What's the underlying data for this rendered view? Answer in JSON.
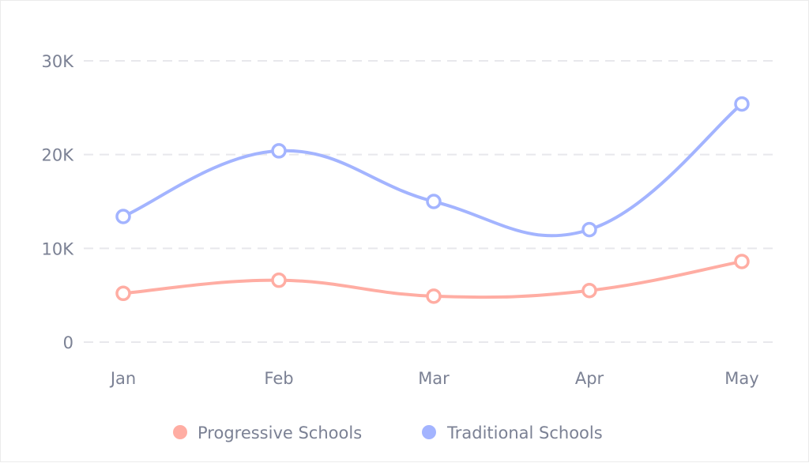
{
  "chart_data": {
    "type": "line",
    "title": "",
    "xlabel": "",
    "ylabel": "",
    "categories": [
      "Jan",
      "Feb",
      "Mar",
      "Apr",
      "May"
    ],
    "series": [
      {
        "name": "Progressive Schools",
        "color": "#ffada3",
        "values": [
          5200,
          6600,
          4900,
          5500,
          8600
        ]
      },
      {
        "name": "Traditional Schools",
        "color": "#a3b4ff",
        "values": [
          13400,
          20400,
          15000,
          12000,
          25400
        ]
      }
    ],
    "yticks": [
      0,
      10000,
      20000,
      30000
    ],
    "ytick_labels": [
      "0",
      "10K",
      "20K",
      "30K"
    ],
    "ylim": [
      0,
      30000
    ],
    "grid": true,
    "smooth": true,
    "markers": "hollow-circle",
    "legend_position": "bottom"
  },
  "legend": {
    "items": [
      {
        "label": "Progressive Schools",
        "color": "#ffada3"
      },
      {
        "label": "Traditional Schools",
        "color": "#a3b4ff"
      }
    ]
  },
  "colors": {
    "grid": "#e8e8ec",
    "tick_text": "#7b8194"
  }
}
